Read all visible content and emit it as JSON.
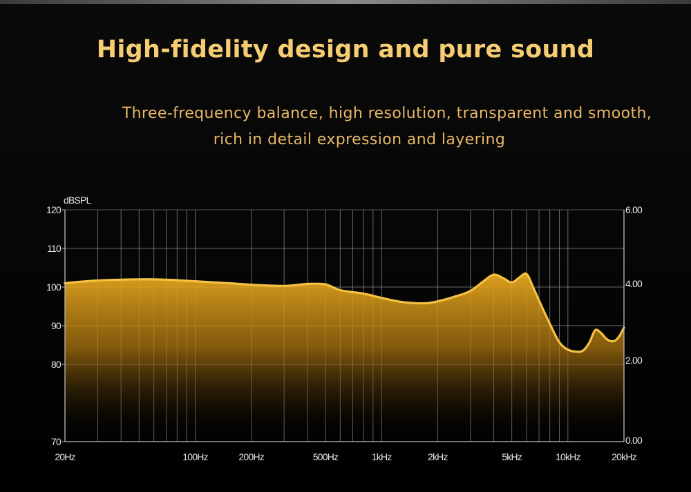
{
  "header": {
    "title": "High-fidelity design and pure sound",
    "subtitle_lines": [
      "Three-frequency balance, high resolution, transparent and smooth,",
      "rich in detail expression and layering"
    ]
  },
  "colors": {
    "title": "#f6cd73",
    "subtitle": "#e8b866",
    "curve": "#f5c242",
    "fill_top": "#e0a21a",
    "grid": "#8a8a8a",
    "background": "#000000"
  },
  "chart_data": {
    "type": "area",
    "ylabel": "dBSPL",
    "y_ticks": [
      "120",
      "110",
      "100",
      "90",
      "80",
      "70"
    ],
    "y_right_ticks": [
      "6.00",
      "4.00",
      "2.00",
      "0.00"
    ],
    "x_ticks": [
      "20Hz",
      "100Hz",
      "200Hz",
      "500Hz",
      "1kHz",
      "2kHz",
      "5kHz",
      "10kHz",
      "20kHz"
    ],
    "x_scale": "log",
    "xlim": [
      20,
      20000
    ],
    "ylim": [
      70,
      120
    ],
    "grid": true,
    "series": [
      {
        "x": [
          20,
          30,
          50,
          70,
          100,
          150,
          200,
          300,
          400,
          500,
          600,
          800,
          1000,
          1300,
          1700,
          2000,
          2500,
          3000,
          3500,
          4000,
          4500,
          5000,
          5500,
          6000,
          6500,
          7000,
          8000,
          9000,
          10000,
          11000,
          12000,
          13000,
          14000,
          15000,
          16000,
          17000,
          18000,
          19000,
          20000
        ],
        "y": [
          101,
          101.7,
          102,
          101.9,
          101.5,
          101,
          100.6,
          100.3,
          100.8,
          100.7,
          99.2,
          98.3,
          97.2,
          96.1,
          95.8,
          96.3,
          97.6,
          99,
          101.4,
          103.2,
          102.3,
          101.2,
          102.5,
          103.4,
          100,
          96.5,
          90.5,
          85.7,
          83.8,
          83.3,
          83.5,
          85.5,
          88.8,
          88.2,
          86.7,
          86,
          86.2,
          87.5,
          89.5
        ]
      }
    ]
  }
}
